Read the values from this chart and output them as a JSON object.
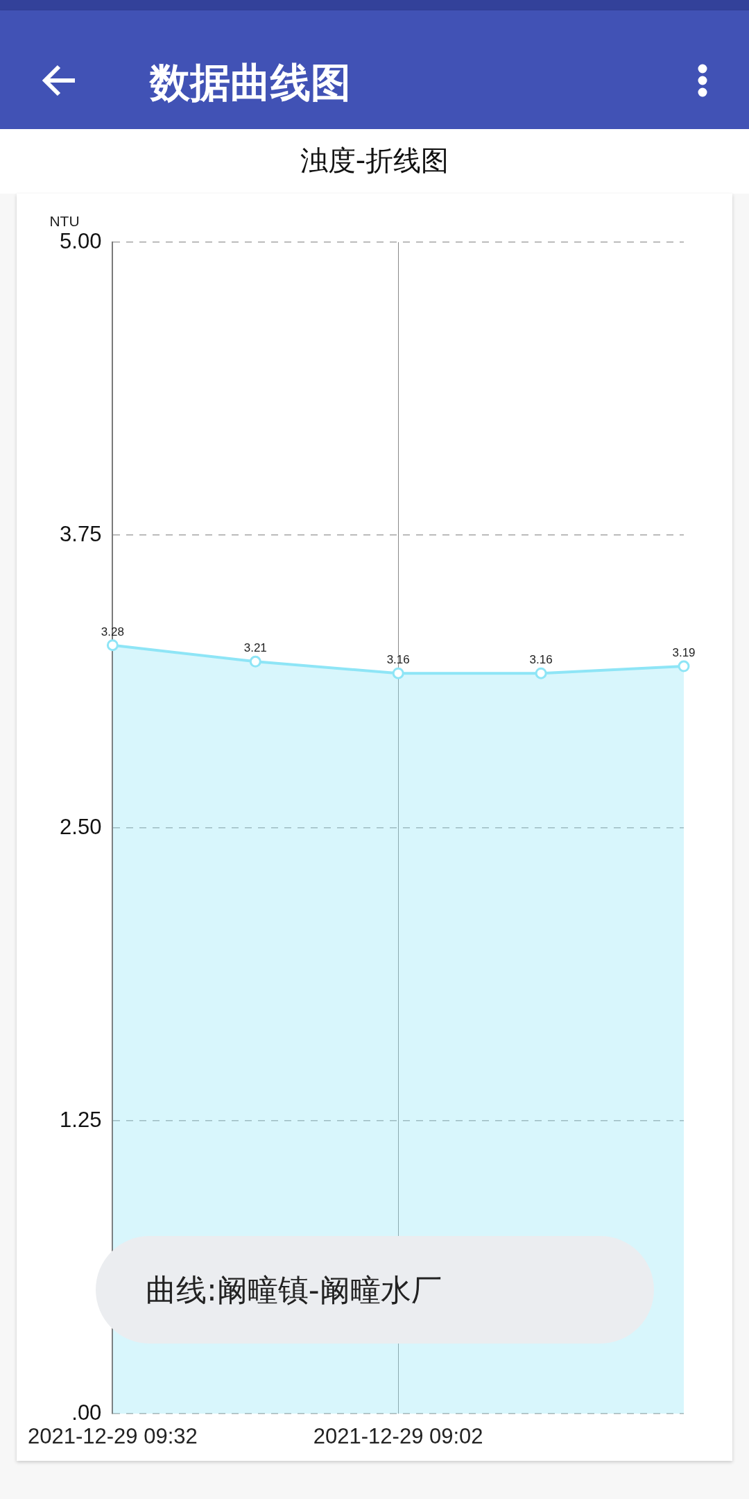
{
  "chart_data": {
    "type": "area",
    "title": "数据曲线图",
    "subtitle": "浊度-折线图",
    "ylabel": "NTU",
    "annotations": [
      "曲线:阚疃镇-阚疃水厂"
    ],
    "categories": [
      "2021-12-29 09:32",
      null,
      "2021-12-29 09:02",
      null,
      null
    ],
    "series": [
      {
        "color": "#8ee5f6",
        "values": [
          3.28,
          3.21,
          3.16,
          3.16,
          3.19
        ]
      }
    ],
    "ylim": [
      0,
      5
    ],
    "yticks": [
      {
        "value": 0,
        "label": ".00"
      },
      {
        "value": 1.25,
        "label": "1.25"
      },
      {
        "value": 2.5,
        "label": "2.50"
      },
      {
        "value": 3.75,
        "label": "3.75"
      },
      {
        "value": 5,
        "label": "5.00"
      }
    ],
    "grid": true,
    "marker": "circle",
    "line_style": "solid",
    "data_labels": true
  }
}
